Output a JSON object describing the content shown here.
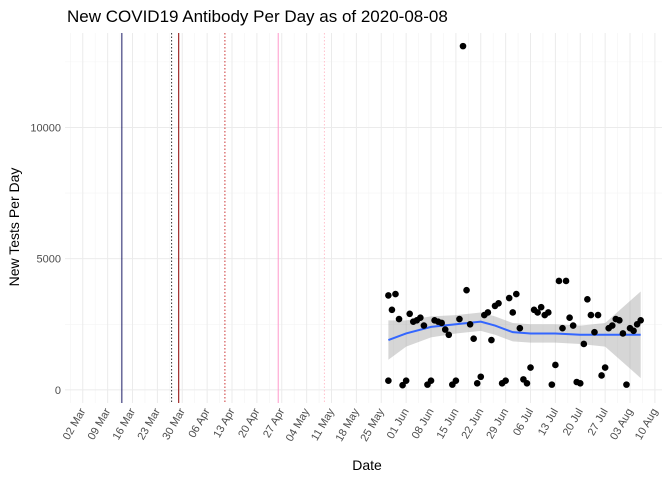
{
  "chart_data": {
    "type": "scatter",
    "title": "New COVID19 Antibody Per Day as of 2020-08-08",
    "xlabel": "Date",
    "ylabel": "New Tests Per Day",
    "x_type": "date",
    "xlim": [
      "2020-02-26",
      "2020-08-12"
    ],
    "ylim": [
      -500,
      13600
    ],
    "x_ticks": [
      "2020-03-02",
      "2020-03-09",
      "2020-03-16",
      "2020-03-23",
      "2020-03-30",
      "2020-04-06",
      "2020-04-13",
      "2020-04-20",
      "2020-04-27",
      "2020-05-04",
      "2020-05-11",
      "2020-05-18",
      "2020-05-25",
      "2020-06-01",
      "2020-06-08",
      "2020-06-15",
      "2020-06-22",
      "2020-06-29",
      "2020-07-06",
      "2020-07-13",
      "2020-07-20",
      "2020-07-27",
      "2020-08-03",
      "2020-08-10"
    ],
    "x_tick_labels": [
      "02 Mar",
      "09 Mar",
      "16 Mar",
      "23 Mar",
      "30 Mar",
      "06 Apr",
      "13 Apr",
      "20 Apr",
      "27 Apr",
      "04 May",
      "11 May",
      "18 May",
      "25 May",
      "01 Jun",
      "08 Jun",
      "15 Jun",
      "22 Jun",
      "29 Jun",
      "06 Jul",
      "13 Jul",
      "20 Jul",
      "27 Jul",
      "03 Aug",
      "10 Aug"
    ],
    "y_ticks": [
      0,
      5000,
      10000
    ],
    "y_tick_labels": [
      "0",
      "5000",
      "10000"
    ],
    "grid": true,
    "colors": {
      "points": "#000000",
      "smooth": "#3366ff",
      "ribbon": "#999999"
    },
    "vlines": [
      {
        "date": "2020-03-13",
        "color": "#1a1a66",
        "style": "solid"
      },
      {
        "date": "2020-03-27",
        "color": "#333333",
        "style": "dotted"
      },
      {
        "date": "2020-03-29",
        "color": "#8b0000",
        "style": "solid"
      },
      {
        "date": "2020-04-11",
        "color": "#cc3333",
        "style": "dotted"
      },
      {
        "date": "2020-04-26",
        "color": "#ff99cc",
        "style": "solid"
      },
      {
        "date": "2020-05-09",
        "color": "#ffc0cb",
        "style": "dotted"
      }
    ],
    "points": [
      [
        "2020-05-27",
        350
      ],
      [
        "2020-05-27",
        3600
      ],
      [
        "2020-05-28",
        3050
      ],
      [
        "2020-05-29",
        3650
      ],
      [
        "2020-05-30",
        2700
      ],
      [
        "2020-05-31",
        180
      ],
      [
        "2020-06-01",
        350
      ],
      [
        "2020-06-02",
        2900
      ],
      [
        "2020-06-03",
        2600
      ],
      [
        "2020-06-04",
        2650
      ],
      [
        "2020-06-05",
        2750
      ],
      [
        "2020-06-06",
        2450
      ],
      [
        "2020-06-07",
        200
      ],
      [
        "2020-06-08",
        350
      ],
      [
        "2020-06-09",
        2650
      ],
      [
        "2020-06-10",
        2600
      ],
      [
        "2020-06-11",
        2550
      ],
      [
        "2020-06-12",
        2300
      ],
      [
        "2020-06-13",
        2100
      ],
      [
        "2020-06-14",
        200
      ],
      [
        "2020-06-15",
        350
      ],
      [
        "2020-06-16",
        2700
      ],
      [
        "2020-06-17",
        13100
      ],
      [
        "2020-06-18",
        3800
      ],
      [
        "2020-06-19",
        2500
      ],
      [
        "2020-06-20",
        1950
      ],
      [
        "2020-06-21",
        250
      ],
      [
        "2020-06-22",
        500
      ],
      [
        "2020-06-23",
        2850
      ],
      [
        "2020-06-24",
        2950
      ],
      [
        "2020-06-25",
        1900
      ],
      [
        "2020-06-26",
        3200
      ],
      [
        "2020-06-27",
        3300
      ],
      [
        "2020-06-28",
        250
      ],
      [
        "2020-06-29",
        350
      ],
      [
        "2020-06-30",
        3500
      ],
      [
        "2020-07-01",
        2950
      ],
      [
        "2020-07-02",
        3650
      ],
      [
        "2020-07-03",
        2350
      ],
      [
        "2020-07-04",
        400
      ],
      [
        "2020-07-05",
        250
      ],
      [
        "2020-07-06",
        850
      ],
      [
        "2020-07-07",
        3050
      ],
      [
        "2020-07-08",
        2950
      ],
      [
        "2020-07-09",
        3150
      ],
      [
        "2020-07-10",
        2850
      ],
      [
        "2020-07-11",
        2950
      ],
      [
        "2020-07-12",
        200
      ],
      [
        "2020-07-13",
        950
      ],
      [
        "2020-07-14",
        4150
      ],
      [
        "2020-07-15",
        2350
      ],
      [
        "2020-07-16",
        4150
      ],
      [
        "2020-07-17",
        2750
      ],
      [
        "2020-07-18",
        2450
      ],
      [
        "2020-07-19",
        300
      ],
      [
        "2020-07-20",
        250
      ],
      [
        "2020-07-21",
        1750
      ],
      [
        "2020-07-22",
        3450
      ],
      [
        "2020-07-23",
        2850
      ],
      [
        "2020-07-24",
        2200
      ],
      [
        "2020-07-25",
        2850
      ],
      [
        "2020-07-26",
        550
      ],
      [
        "2020-07-27",
        850
      ],
      [
        "2020-07-28",
        2350
      ],
      [
        "2020-07-29",
        2450
      ],
      [
        "2020-07-30",
        2700
      ],
      [
        "2020-07-31",
        2650
      ],
      [
        "2020-08-01",
        2150
      ],
      [
        "2020-08-02",
        200
      ],
      [
        "2020-08-03",
        2350
      ],
      [
        "2020-08-04",
        2250
      ],
      [
        "2020-08-05",
        2500
      ],
      [
        "2020-08-06",
        2650
      ]
    ],
    "smooth": [
      [
        "2020-05-27",
        1900
      ],
      [
        "2020-06-01",
        2150
      ],
      [
        "2020-06-08",
        2400
      ],
      [
        "2020-06-15",
        2500
      ],
      [
        "2020-06-22",
        2600
      ],
      [
        "2020-06-26",
        2450
      ],
      [
        "2020-07-01",
        2200
      ],
      [
        "2020-07-06",
        2150
      ],
      [
        "2020-07-13",
        2150
      ],
      [
        "2020-07-20",
        2100
      ],
      [
        "2020-07-27",
        2100
      ],
      [
        "2020-08-06",
        2100
      ]
    ],
    "ribbon": [
      [
        "2020-05-27",
        1150,
        2650
      ],
      [
        "2020-06-01",
        1650,
        2650
      ],
      [
        "2020-06-08",
        2000,
        2800
      ],
      [
        "2020-06-15",
        2150,
        2850
      ],
      [
        "2020-06-22",
        2250,
        2950
      ],
      [
        "2020-06-26",
        2100,
        2800
      ],
      [
        "2020-07-01",
        1850,
        2550
      ],
      [
        "2020-07-06",
        1800,
        2500
      ],
      [
        "2020-07-13",
        1800,
        2500
      ],
      [
        "2020-07-20",
        1750,
        2450
      ],
      [
        "2020-07-27",
        1650,
        2550
      ],
      [
        "2020-08-06",
        450,
        3750
      ]
    ]
  }
}
